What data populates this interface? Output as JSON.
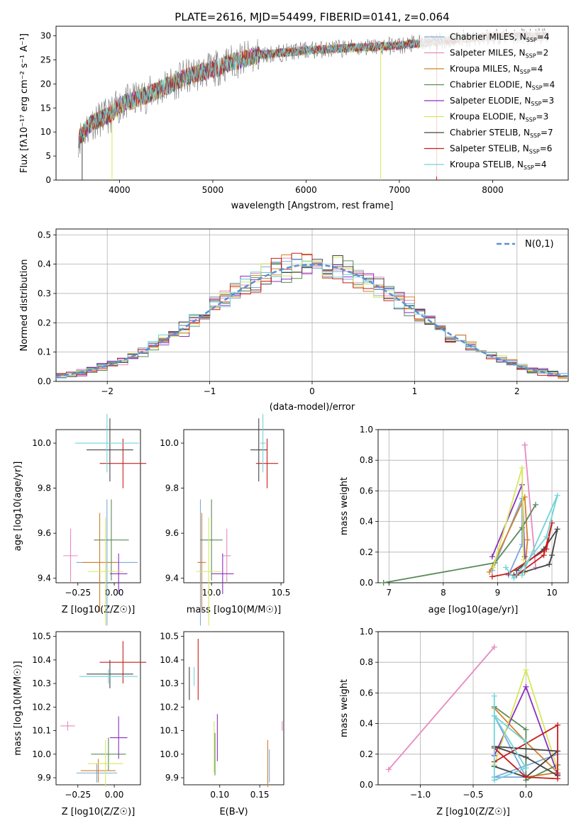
{
  "colors": {
    "Chabrier MILES": "#7aa9de",
    "Salpeter MILES": "#e68ac0",
    "Kroupa MILES": "#d2802a",
    "Chabrier ELODIE": "#5a8a5a",
    "Salpeter ELODIE": "#8a2ec2",
    "Kroupa ELODIE": "#d6e85a",
    "Chabrier STELIB": "#444444",
    "Salpeter STELIB": "#c81e1e",
    "Kroupa STELIB": "#72d4d8",
    "normal_curve": "#5b8fd6"
  },
  "chart_data": [
    {
      "type": "line",
      "title": "PLATE=2616, MJD=54499, FIBERID=0141, z=0.064",
      "xlabel": "wavelength [Angstrom, rest frame]",
      "ylabel": "Flux [fλ10⁻¹⁷ erg cm⁻² s⁻¹ A⁻¹]",
      "xlim": [
        3320,
        8810
      ],
      "ylim": [
        0,
        32
      ],
      "xticks": [
        4000,
        5000,
        6000,
        7000,
        8000
      ],
      "yticks": [
        0,
        5,
        10,
        15,
        20,
        25,
        30
      ],
      "grid": false,
      "legend_position": "right",
      "legend": [
        {
          "label": "Chabrier MILES, N",
          "sub": "SSP",
          "suffix": "=4"
        },
        {
          "label": "Salpeter MILES, N",
          "sub": "SSP",
          "suffix": "=2"
        },
        {
          "label": "Kroupa MILES, N",
          "sub": "SSP",
          "suffix": "=4"
        },
        {
          "label": "Chabrier ELODIE, N",
          "sub": "SSP",
          "suffix": "=4"
        },
        {
          "label": "Salpeter ELODIE, N",
          "sub": "SSP",
          "suffix": "=3"
        },
        {
          "label": "Kroupa ELODIE, N",
          "sub": "SSP",
          "suffix": "=3"
        },
        {
          "label": "Chabrier STELIB, N",
          "sub": "SSP",
          "suffix": "=7"
        },
        {
          "label": "Salpeter STELIB, N",
          "sub": "SSP",
          "suffix": "=6"
        },
        {
          "label": "Kroupa STELIB, N",
          "sub": "SSP",
          "suffix": "=4"
        }
      ],
      "spectrum_continuum": [
        [
          3560,
          8.5
        ],
        [
          3700,
          12
        ],
        [
          3900,
          13.5
        ],
        [
          4000,
          15.5
        ],
        [
          4200,
          17
        ],
        [
          4400,
          18.5
        ],
        [
          4600,
          20.5
        ],
        [
          4800,
          22
        ],
        [
          5000,
          23
        ],
        [
          5200,
          24.5
        ],
        [
          5500,
          26
        ],
        [
          6000,
          27
        ],
        [
          6500,
          27.5
        ],
        [
          7000,
          28
        ],
        [
          7500,
          29
        ],
        [
          7700,
          29.5
        ],
        [
          8100,
          30
        ],
        [
          8400,
          29.8
        ],
        [
          8600,
          30
        ]
      ],
      "spectrum_end": 8600,
      "spikes": [
        {
          "x": 3920,
          "y": 0,
          "color": "Kroupa ELODIE"
        },
        {
          "x": 3600,
          "y": 0,
          "color": "Chabrier STELIB"
        },
        {
          "x": 6800,
          "y": 0,
          "color": "Kroupa ELODIE"
        },
        {
          "x": 7400,
          "y": 0,
          "color": "Salpeter STELIB"
        }
      ]
    },
    {
      "type": "histogram",
      "xlabel": "(data-model)/error",
      "ylabel": "Normed distribution",
      "xlim": [
        -2.5,
        2.5
      ],
      "ylim": [
        0,
        0.52
      ],
      "xticks": [
        -2,
        -1,
        0,
        1,
        2
      ],
      "yticks": [
        0.0,
        0.1,
        0.2,
        0.3,
        0.4,
        0.5
      ],
      "grid": true,
      "legend_position": "top-right",
      "legend": [
        {
          "label": "N(0,1)",
          "style": "dashed"
        }
      ],
      "bin_width": 0.1,
      "bin_start": -2.5,
      "normal_curve": {
        "mu": 0,
        "sigma": 1
      }
    },
    {
      "type": "scatter",
      "subtype": "errorbar",
      "xlabel": "Z [log10(Z/Z☉)]",
      "ylabel": "age  [log10(age/yr)]",
      "xlim": [
        -0.4,
        0.18
      ],
      "ylim": [
        9.38,
        10.06
      ],
      "xticks": [
        -0.25,
        0.0
      ],
      "yticks": [
        9.4,
        9.6,
        9.8,
        10.0
      ],
      "points": [
        {
          "x": -0.3,
          "y": 9.5,
          "xerr": 0.05,
          "yerr": 0.12,
          "color": "Salpeter MILES"
        },
        {
          "x": -0.05,
          "y": 9.47,
          "xerr": 0.21,
          "yerr": 0.28,
          "color": "Chabrier MILES"
        },
        {
          "x": -0.1,
          "y": 9.47,
          "xerr": 0.12,
          "yerr": 0.22,
          "color": "Kroupa MILES"
        },
        {
          "x": -0.02,
          "y": 9.57,
          "xerr": 0.12,
          "yerr": 0.18,
          "color": "Chabrier ELODIE"
        },
        {
          "x": 0.03,
          "y": 9.42,
          "xerr": 0.06,
          "yerr": 0.09,
          "color": "Salpeter ELODIE"
        },
        {
          "x": -0.06,
          "y": 9.43,
          "xerr": 0.12,
          "yerr": 0.24,
          "color": "Kroupa ELODIE"
        },
        {
          "x": -0.03,
          "y": 9.97,
          "xerr": 0.16,
          "yerr": 0.14,
          "color": "Chabrier STELIB"
        },
        {
          "x": 0.06,
          "y": 9.91,
          "xerr": 0.16,
          "yerr": 0.11,
          "color": "Salpeter STELIB"
        },
        {
          "x": -0.05,
          "y": 10.0,
          "xerr": 0.22,
          "yerr": 0.13,
          "color": "Kroupa STELIB"
        }
      ]
    },
    {
      "type": "scatter",
      "subtype": "errorbar",
      "xlabel": "mass [log10(M/M☉)]",
      "ylabel": "",
      "xlim": [
        9.8,
        10.52
      ],
      "ylim": [
        9.38,
        10.06
      ],
      "xticks": [
        10.0,
        10.5
      ],
      "yticks": [
        9.4,
        9.6,
        9.8,
        10.0
      ],
      "points": [
        {
          "x": 10.11,
          "y": 9.5,
          "xerr": 0.03,
          "yerr": 0.12,
          "color": "Salpeter MILES"
        },
        {
          "x": 9.92,
          "y": 9.47,
          "xerr": 0.02,
          "yerr": 0.28,
          "color": "Chabrier MILES"
        },
        {
          "x": 9.93,
          "y": 9.47,
          "xerr": 0.03,
          "yerr": 0.22,
          "color": "Kroupa MILES"
        },
        {
          "x": 10.0,
          "y": 9.57,
          "xerr": 0.08,
          "yerr": 0.18,
          "color": "Chabrier ELODIE"
        },
        {
          "x": 10.08,
          "y": 9.42,
          "xerr": 0.08,
          "yerr": 0.09,
          "color": "Salpeter ELODIE"
        },
        {
          "x": 9.98,
          "y": 9.43,
          "xerr": 0.09,
          "yerr": 0.24,
          "color": "Kroupa ELODIE"
        },
        {
          "x": 10.34,
          "y": 9.97,
          "xerr": 0.06,
          "yerr": 0.14,
          "color": "Chabrier STELIB"
        },
        {
          "x": 10.4,
          "y": 9.91,
          "xerr": 0.08,
          "yerr": 0.11,
          "color": "Salpeter STELIB"
        },
        {
          "x": 10.37,
          "y": 10.0,
          "xerr": 0.02,
          "yerr": 0.13,
          "color": "Kroupa STELIB"
        }
      ]
    },
    {
      "type": "line",
      "xlabel": "age  [log10(age/yr)]",
      "ylabel": "mass weight",
      "xlim": [
        6.8,
        10.3
      ],
      "ylim": [
        0,
        1.0
      ],
      "xticks": [
        7,
        8,
        9,
        10
      ],
      "yticks": [
        0.0,
        0.2,
        0.4,
        0.6,
        0.8,
        1.0
      ],
      "grid": true,
      "series": [
        {
          "color": "Chabrier MILES",
          "x": [
            8.9,
            9.45,
            9.45,
            9.2
          ],
          "y": [
            0.08,
            0.55,
            0.25,
            0.05
          ]
        },
        {
          "color": "Salpeter MILES",
          "x": [
            9.5,
            9.7,
            9.5
          ],
          "y": [
            0.9,
            0.1,
            0.9
          ]
        },
        {
          "color": "Kroupa MILES",
          "x": [
            8.85,
            9.5,
            9.55,
            9.5
          ],
          "y": [
            0.07,
            0.56,
            0.28,
            0.07
          ]
        },
        {
          "color": "Chabrier ELODIE",
          "x": [
            6.9,
            8.95,
            9.45,
            9.7
          ],
          "y": [
            0.0,
            0.13,
            0.36,
            0.51
          ]
        },
        {
          "color": "Salpeter ELODIE",
          "x": [
            8.9,
            9.45,
            9.5
          ],
          "y": [
            0.17,
            0.64,
            0.17
          ]
        },
        {
          "color": "Kroupa ELODIE",
          "x": [
            8.92,
            9.45,
            9.48
          ],
          "y": [
            0.1,
            0.75,
            0.15
          ]
        },
        {
          "color": "Chabrier STELIB",
          "x": [
            9.35,
            9.85,
            10.1,
            10.0,
            9.95,
            9.3
          ],
          "y": [
            0.08,
            0.22,
            0.35,
            0.18,
            0.12,
            0.05
          ]
        },
        {
          "color": "Salpeter STELIB",
          "x": [
            8.9,
            9.2,
            9.9,
            10.0,
            9.85,
            9.35
          ],
          "y": [
            0.04,
            0.06,
            0.22,
            0.39,
            0.18,
            0.05
          ]
        },
        {
          "color": "Kroupa STELIB",
          "x": [
            9.15,
            9.3,
            9.9,
            10.1,
            9.45
          ],
          "y": [
            0.1,
            0.03,
            0.3,
            0.57,
            0.05
          ]
        }
      ]
    },
    {
      "type": "scatter",
      "subtype": "errorbar",
      "xlabel": "Z [log10(Z/Z☉)]",
      "ylabel": "mass [log10(M/M☉)]",
      "xlim": [
        -0.4,
        0.18
      ],
      "ylim": [
        9.87,
        10.52
      ],
      "xticks": [
        -0.25,
        0.0
      ],
      "yticks": [
        9.9,
        10.0,
        10.1,
        10.2,
        10.3,
        10.4,
        10.5
      ],
      "points": [
        {
          "x": -0.32,
          "y": 10.12,
          "xerr": 0.05,
          "yerr": 0.02,
          "color": "Salpeter MILES"
        },
        {
          "x": -0.12,
          "y": 9.92,
          "xerr": 0.14,
          "yerr": 0.04,
          "color": "Chabrier MILES"
        },
        {
          "x": -0.11,
          "y": 9.93,
          "xerr": 0.12,
          "yerr": 0.05,
          "color": "Kroupa MILES"
        },
        {
          "x": -0.04,
          "y": 10.0,
          "xerr": 0.12,
          "yerr": 0.07,
          "color": "Chabrier ELODIE"
        },
        {
          "x": 0.03,
          "y": 10.07,
          "xerr": 0.06,
          "yerr": 0.09,
          "color": "Salpeter ELODIE"
        },
        {
          "x": -0.06,
          "y": 9.96,
          "xerr": 0.12,
          "yerr": 0.1,
          "color": "Kroupa ELODIE"
        },
        {
          "x": -0.03,
          "y": 10.34,
          "xerr": 0.16,
          "yerr": 0.06,
          "color": "Chabrier STELIB"
        },
        {
          "x": 0.06,
          "y": 10.39,
          "xerr": 0.16,
          "yerr": 0.09,
          "color": "Salpeter STELIB"
        },
        {
          "x": -0.04,
          "y": 10.33,
          "xerr": 0.2,
          "yerr": 0.03,
          "color": "Kroupa STELIB"
        }
      ]
    },
    {
      "type": "scatter",
      "subtype": "errorbar",
      "xlabel": "E(B-V)",
      "ylabel": "",
      "xlim": [
        0.055,
        0.18
      ],
      "ylim": [
        9.87,
        10.52
      ],
      "xticks": [
        0.1,
        0.15
      ],
      "yticks": [
        9.9,
        10.0,
        10.1,
        10.2,
        10.3,
        10.4,
        10.5
      ],
      "points": [
        {
          "x": 0.178,
          "y": 10.12,
          "xerr": 0,
          "yerr": 0.02,
          "color": "Salpeter MILES"
        },
        {
          "x": 0.162,
          "y": 9.95,
          "xerr": 0,
          "yerr": 0.07,
          "color": "Chabrier MILES"
        },
        {
          "x": 0.16,
          "y": 9.96,
          "xerr": 0,
          "yerr": 0.1,
          "color": "Kroupa MILES"
        },
        {
          "x": 0.094,
          "y": 10.0,
          "xerr": 0,
          "yerr": 0.09,
          "color": "Chabrier ELODIE"
        },
        {
          "x": 0.097,
          "y": 10.07,
          "xerr": 0,
          "yerr": 0.1,
          "color": "Salpeter ELODIE"
        },
        {
          "x": 0.093,
          "y": 10.03,
          "xerr": 0,
          "yerr": 0.11,
          "color": "Kroupa ELODIE"
        },
        {
          "x": 0.062,
          "y": 10.3,
          "xerr": 0,
          "yerr": 0.07,
          "color": "Chabrier STELIB"
        },
        {
          "x": 0.073,
          "y": 10.36,
          "xerr": 0,
          "yerr": 0.13,
          "color": "Salpeter STELIB"
        },
        {
          "x": 0.068,
          "y": 10.33,
          "xerr": 0,
          "yerr": 0.04,
          "color": "Kroupa STELIB"
        }
      ]
    },
    {
      "type": "line",
      "xlabel": "Z [log10(Z/Z☉)]",
      "ylabel": "mass weight",
      "xlim": [
        -1.4,
        0.4
      ],
      "ylim": [
        0,
        1.0
      ],
      "xticks": [
        -1.0,
        -0.5,
        0.0
      ],
      "yticks": [
        0.0,
        0.2,
        0.4,
        0.6,
        0.8,
        1.0
      ],
      "grid": true,
      "series": [
        {
          "color": "Salpeter MILES",
          "x": [
            -1.3,
            -0.3
          ],
          "y": [
            0.1,
            0.9
          ]
        },
        {
          "color": "Chabrier MILES",
          "x": [
            -0.3,
            0.0,
            -0.3,
            0.3
          ],
          "y": [
            0.45,
            0.05,
            0.05,
            0.2
          ]
        },
        {
          "color": "Kroupa MILES",
          "x": [
            -0.3,
            0.0,
            0.3,
            0.0
          ],
          "y": [
            0.5,
            0.28,
            0.08,
            0.05
          ]
        },
        {
          "color": "Chabrier ELODIE",
          "x": [
            -0.3,
            0.0,
            0.0,
            0.3
          ],
          "y": [
            0.51,
            0.36,
            0.03,
            0.13
          ]
        },
        {
          "color": "Salpeter ELODIE",
          "x": [
            -0.3,
            0.0,
            0.3
          ],
          "y": [
            0.19,
            0.64,
            0.07
          ]
        },
        {
          "color": "Kroupa ELODIE",
          "x": [
            -0.3,
            0.0,
            0.3
          ],
          "y": [
            0.13,
            0.75,
            0.1
          ]
        },
        {
          "color": "Chabrier STELIB",
          "x": [
            -0.3,
            0.0,
            0.3,
            -0.3,
            0.0,
            0.3
          ],
          "y": [
            0.12,
            0.05,
            0.22,
            0.25,
            0.18,
            0.06
          ]
        },
        {
          "color": "Salpeter STELIB",
          "x": [
            -0.3,
            0.0,
            0.3,
            0.3,
            -0.3
          ],
          "y": [
            0.24,
            0.05,
            0.04,
            0.39,
            0.15
          ]
        },
        {
          "color": "Kroupa STELIB",
          "x": [
            -0.3,
            -0.3,
            0.0,
            -0.3,
            0.0
          ],
          "y": [
            0.58,
            0.03,
            0.11,
            0.45,
            0.28
          ]
        }
      ]
    }
  ]
}
